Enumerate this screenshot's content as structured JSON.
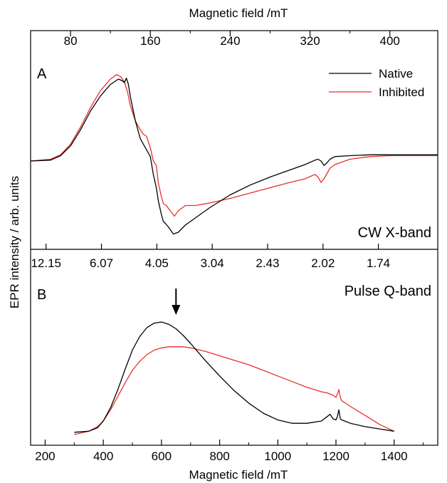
{
  "chart_data": [
    {
      "panel": "A",
      "type": "line",
      "label": "CW X-band",
      "top_axis": {
        "label": "Magnetic field /mT",
        "ticks": [
          80,
          160,
          240,
          320,
          400
        ],
        "minor_ticks": [
          120,
          200,
          280,
          360
        ],
        "range": [
          40,
          448
        ]
      },
      "bottom_axis_g": {
        "ticks": [
          {
            "label": "12.15",
            "field": 55.5
          },
          {
            "label": "6.07",
            "field": 111
          },
          {
            "label": "4.05",
            "field": 166.5
          },
          {
            "label": "3.04",
            "field": 222
          },
          {
            "label": "2.43",
            "field": 277.5
          },
          {
            "label": "2.02",
            "field": 333
          },
          {
            "label": "1.74",
            "field": 388.5
          }
        ]
      },
      "series": [
        {
          "name": "Native",
          "color": "#000000",
          "x": [
            40,
            60,
            70,
            80,
            90,
            100,
            110,
            120,
            128,
            132,
            134,
            136,
            138,
            140,
            145,
            150,
            155,
            160,
            163,
            166,
            168,
            171,
            173,
            175,
            178,
            183,
            188,
            195,
            205,
            220,
            240,
            260,
            280,
            300,
            315,
            325,
            328,
            331,
            334,
            337,
            340,
            345,
            360,
            380,
            400,
            420,
            448
          ],
          "y": [
            0.0,
            0.01,
            0.06,
            0.17,
            0.35,
            0.56,
            0.73,
            0.86,
            0.92,
            0.9,
            0.88,
            0.93,
            0.86,
            0.72,
            0.45,
            0.25,
            0.15,
            0.05,
            -0.15,
            -0.3,
            -0.45,
            -0.6,
            -0.68,
            -0.7,
            -0.74,
            -0.82,
            -0.8,
            -0.72,
            -0.64,
            -0.52,
            -0.38,
            -0.27,
            -0.18,
            -0.1,
            -0.04,
            0.01,
            0.02,
            0.0,
            -0.05,
            -0.02,
            0.02,
            0.05,
            0.06,
            0.07,
            0.07,
            0.07,
            0.07
          ]
        },
        {
          "name": "Inhibited",
          "color": "#e8312b",
          "x": [
            40,
            60,
            70,
            80,
            90,
            100,
            110,
            120,
            126,
            130,
            134,
            137,
            140,
            145,
            150,
            153,
            156,
            160,
            163,
            166,
            168,
            171,
            173,
            176,
            180,
            184,
            188,
            195,
            205,
            220,
            240,
            260,
            280,
            300,
            315,
            325,
            328,
            331,
            334,
            337,
            340,
            345,
            360,
            380,
            400,
            420,
            448
          ],
          "y": [
            0.0,
            0.02,
            0.07,
            0.19,
            0.38,
            0.6,
            0.79,
            0.92,
            0.97,
            0.95,
            0.89,
            0.78,
            0.62,
            0.45,
            0.35,
            0.3,
            0.28,
            0.15,
            0.0,
            -0.05,
            -0.25,
            -0.4,
            -0.48,
            -0.5,
            -0.56,
            -0.62,
            -0.56,
            -0.5,
            -0.5,
            -0.47,
            -0.42,
            -0.36,
            -0.3,
            -0.24,
            -0.2,
            -0.15,
            -0.18,
            -0.24,
            -0.2,
            -0.14,
            -0.08,
            -0.04,
            0.02,
            0.05,
            0.06,
            0.06,
            0.06
          ]
        }
      ]
    },
    {
      "panel": "B",
      "type": "line",
      "label": "Pulse Q-band",
      "x_axis": {
        "label": "Magnetic field /mT",
        "ticks": [
          200,
          400,
          600,
          800,
          1000,
          1200,
          1400
        ],
        "range": [
          150,
          1550
        ]
      },
      "y_axis_label": "EPR intensity / arb. units",
      "annotation": {
        "type": "arrow",
        "x": 650
      },
      "series": [
        {
          "name": "Native",
          "color": "#000000",
          "x": [
            300,
            350,
            380,
            400,
            425,
            450,
            475,
            500,
            525,
            550,
            575,
            600,
            625,
            650,
            675,
            700,
            750,
            800,
            850,
            900,
            950,
            1000,
            1050,
            1100,
            1150,
            1170,
            1180,
            1190,
            1200,
            1205,
            1210,
            1215,
            1220,
            1250,
            1300,
            1350,
            1400
          ],
          "y": [
            0.02,
            0.03,
            0.06,
            0.12,
            0.24,
            0.4,
            0.58,
            0.75,
            0.87,
            0.95,
            0.99,
            1.0,
            0.98,
            0.94,
            0.88,
            0.81,
            0.66,
            0.52,
            0.39,
            0.28,
            0.19,
            0.13,
            0.1,
            0.1,
            0.12,
            0.16,
            0.18,
            0.14,
            0.13,
            0.16,
            0.22,
            0.14,
            0.13,
            0.1,
            0.07,
            0.05,
            0.03
          ]
        },
        {
          "name": "Inhibited",
          "color": "#e8312b",
          "x": [
            300,
            350,
            380,
            400,
            425,
            450,
            475,
            500,
            525,
            550,
            575,
            600,
            625,
            650,
            675,
            700,
            750,
            800,
            850,
            900,
            950,
            1000,
            1050,
            1100,
            1150,
            1170,
            1180,
            1190,
            1200,
            1205,
            1210,
            1215,
            1220,
            1250,
            1300,
            1350,
            1400
          ],
          "y": [
            0.0,
            0.03,
            0.07,
            0.12,
            0.22,
            0.34,
            0.46,
            0.57,
            0.65,
            0.71,
            0.75,
            0.77,
            0.78,
            0.78,
            0.78,
            0.77,
            0.74,
            0.7,
            0.66,
            0.62,
            0.57,
            0.52,
            0.47,
            0.42,
            0.38,
            0.37,
            0.36,
            0.35,
            0.33,
            0.36,
            0.4,
            0.33,
            0.3,
            0.25,
            0.17,
            0.09,
            0.03
          ]
        }
      ]
    }
  ]
}
